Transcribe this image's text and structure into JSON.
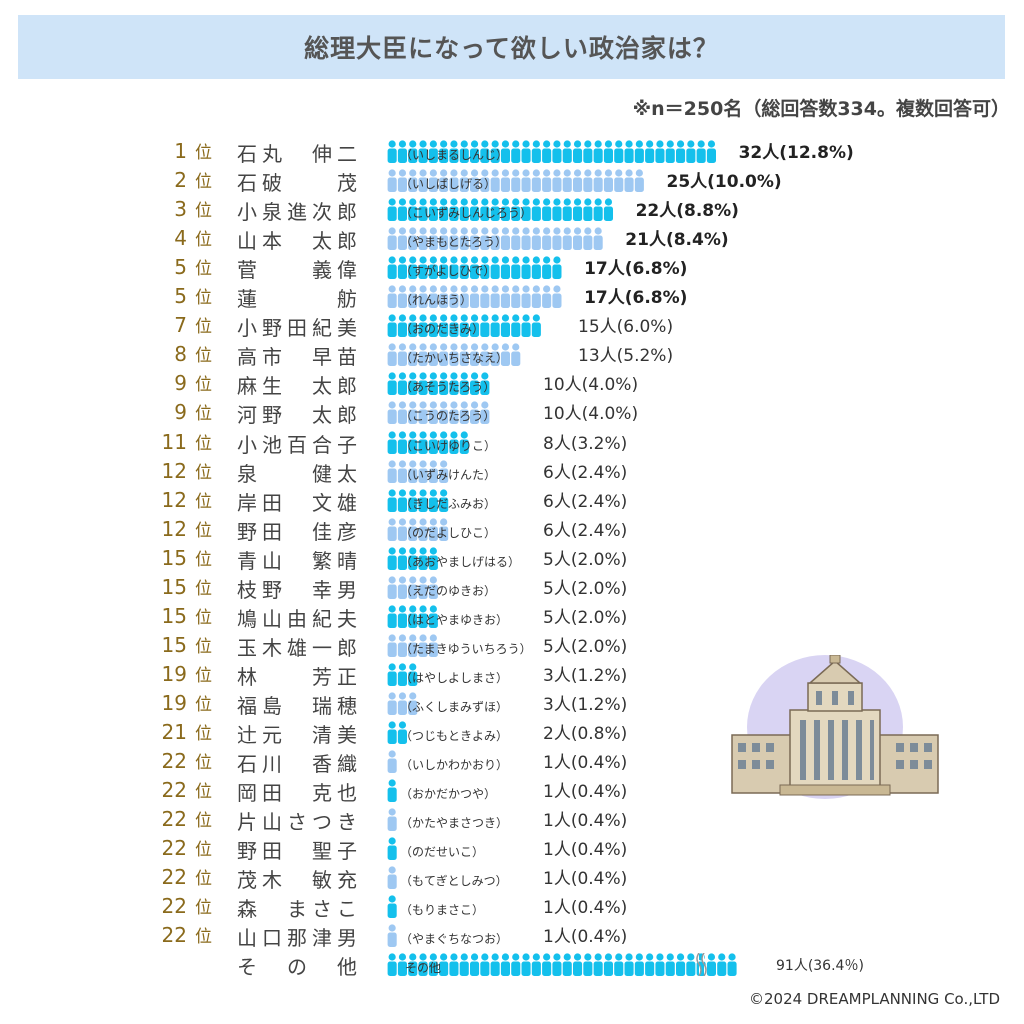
{
  "title": "総理大臣になって欲しい政治家は？",
  "sample_note": "※n＝250名（総回答数334。複数回答可）",
  "rank_suffix": "位",
  "copyright": "©2024 DREAMPLANNING Co.,LTD",
  "colors": {
    "dark": "#14c0ec",
    "light": "#9ec8f2",
    "rank": "#8a6a1c",
    "title_band": "#cfe4f8",
    "circle": "#d9d4f3"
  },
  "icons": {
    "bar_unit": "person-icon",
    "illustration": "national-diet-building"
  },
  "chart_data": {
    "type": "bar",
    "orientation": "horizontal",
    "unit": "人",
    "rows": [
      {
        "rank": "1",
        "name": "石丸　伸二",
        "reading": "（いしまるしんじ）",
        "value": 32,
        "label": "32人(12.8%)"
      },
      {
        "rank": "2",
        "name": "石破　　茂",
        "reading": "（いしばしげる）",
        "value": 25,
        "label": "25人(10.0%)"
      },
      {
        "rank": "3",
        "name": "小泉進次郎",
        "reading": "（こいずみしんじろう）",
        "value": 22,
        "label": "22人(8.8%)"
      },
      {
        "rank": "4",
        "name": "山本　太郎",
        "reading": "（やまもとたろう）",
        "value": 21,
        "label": "21人(8.4%)"
      },
      {
        "rank": "5",
        "name": "菅　　義偉",
        "reading": "（すがよしひで）",
        "value": 17,
        "label": "17人(6.8%)"
      },
      {
        "rank": "5",
        "name": "蓮　　　舫",
        "reading": "（れんほう）",
        "value": 17,
        "label": "17人(6.8%)"
      },
      {
        "rank": "7",
        "name": "小野田紀美",
        "reading": "（おのだきみ）",
        "value": 15,
        "label": "15人(6.0%)"
      },
      {
        "rank": "8",
        "name": "高市　早苗",
        "reading": "（たかいちさなえ）",
        "value": 13,
        "label": "13人(5.2%)"
      },
      {
        "rank": "9",
        "name": "麻生　太郎",
        "reading": "（あそうたろう）",
        "value": 10,
        "label": "10人(4.0%)"
      },
      {
        "rank": "9",
        "name": "河野　太郎",
        "reading": "（こうのたろう）",
        "value": 10,
        "label": "10人(4.0%)"
      },
      {
        "rank": "11",
        "name": "小池百合子",
        "reading": "（こいけゆりこ）",
        "value": 8,
        "label": "8人(3.2%)"
      },
      {
        "rank": "12",
        "name": "泉　　健太",
        "reading": "（いずみけんた）",
        "value": 6,
        "label": "6人(2.4%)"
      },
      {
        "rank": "12",
        "name": "岸田　文雄",
        "reading": "（きしだふみお）",
        "value": 6,
        "label": "6人(2.4%)"
      },
      {
        "rank": "12",
        "name": "野田　佳彦",
        "reading": "（のだよしひこ）",
        "value": 6,
        "label": "6人(2.4%)"
      },
      {
        "rank": "15",
        "name": "青山　繁晴",
        "reading": "（あおやましげはる）",
        "value": 5,
        "label": "5人(2.0%)"
      },
      {
        "rank": "15",
        "name": "枝野　幸男",
        "reading": "（えだのゆきお）",
        "value": 5,
        "label": "5人(2.0%)"
      },
      {
        "rank": "15",
        "name": "鳩山由紀夫",
        "reading": "（はとやまゆきお）",
        "value": 5,
        "label": "5人(2.0%)"
      },
      {
        "rank": "15",
        "name": "玉木雄一郎",
        "reading": "（たまきゆういちろう）",
        "value": 5,
        "label": "5人(2.0%)"
      },
      {
        "rank": "19",
        "name": "林　　芳正",
        "reading": "（はやしよしまさ）",
        "value": 3,
        "label": "3人(1.2%)"
      },
      {
        "rank": "19",
        "name": "福島　瑞穂",
        "reading": "（ふくしまみずほ）",
        "value": 3,
        "label": "3人(1.2%)"
      },
      {
        "rank": "21",
        "name": "辻元　清美",
        "reading": "（つじもときよみ）",
        "value": 2,
        "label": "2人(0.8%)"
      },
      {
        "rank": "22",
        "name": "石川　香織",
        "reading": "（いしかわかおり）",
        "value": 1,
        "label": "1人(0.4%)"
      },
      {
        "rank": "22",
        "name": "岡田　克也",
        "reading": "（おかだかつや）",
        "value": 1,
        "label": "1人(0.4%)"
      },
      {
        "rank": "22",
        "name": "片山さつき",
        "reading": "（かたやまさつき）",
        "value": 1,
        "label": "1人(0.4%)"
      },
      {
        "rank": "22",
        "name": "野田　聖子",
        "reading": "（のだせいこ）",
        "value": 1,
        "label": "1人(0.4%)"
      },
      {
        "rank": "22",
        "name": "茂木　敏充",
        "reading": "（もてぎとしみつ）",
        "value": 1,
        "label": "1人(0.4%)"
      },
      {
        "rank": "22",
        "name": "森　まさこ",
        "reading": "（もりまさこ）",
        "value": 1,
        "label": "1人(0.4%)"
      },
      {
        "rank": "22",
        "name": "山口那津男",
        "reading": "（やまぐちなつお）",
        "value": 1,
        "label": "1人(0.4%)"
      }
    ],
    "other": {
      "name": "その他",
      "reading": "その他",
      "value": 91,
      "label": "91人(36.4％)",
      "axis_break": true
    }
  }
}
